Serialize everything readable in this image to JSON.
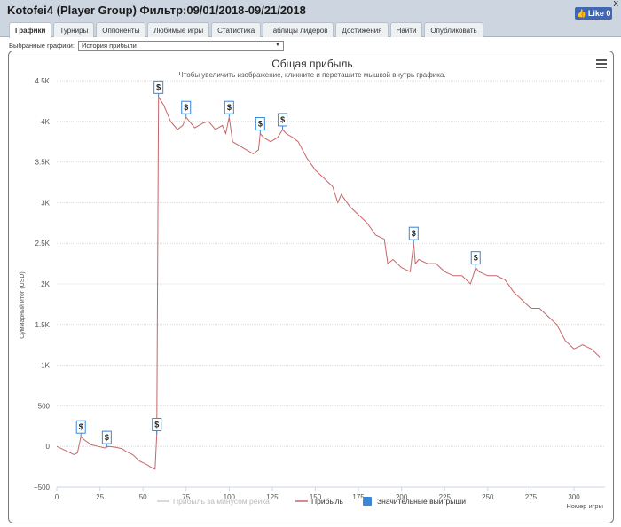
{
  "window": {
    "title": "Kotofei4 (Player Group) Фильтр:09/01/2018-09/21/2018",
    "close_label": "x",
    "like_label": "Like 0"
  },
  "tabs": [
    {
      "label": "Графики",
      "active": true
    },
    {
      "label": "Турниры",
      "active": false
    },
    {
      "label": "Оппоненты",
      "active": false
    },
    {
      "label": "Любимые игры",
      "active": false
    },
    {
      "label": "Статистика",
      "active": false
    },
    {
      "label": "Таблицы лидеров",
      "active": false
    },
    {
      "label": "Достижения",
      "active": false
    },
    {
      "label": "Найти",
      "active": false
    },
    {
      "label": "Опубликовать",
      "active": false
    }
  ],
  "selector": {
    "label": "Выбранные графики:",
    "value": "История прибыли"
  },
  "colors": {
    "profit_line": "#c4676a",
    "rake_line": "#cccccc",
    "big_win": "#3a86d8",
    "grid": "#dddddd"
  },
  "chart_data": {
    "type": "line",
    "title": "Общая прибыль",
    "subtitle": "Чтобы увеличить изображение, кликните и перетащите мышкой внутрь графика.",
    "xlabel": "Номер игры",
    "ylabel": "Суммарный итог (USD)",
    "xlim": [
      0,
      318
    ],
    "ylim": [
      -500,
      4500
    ],
    "xticks": [
      0,
      25,
      50,
      75,
      100,
      125,
      150,
      175,
      200,
      225,
      250,
      275,
      300
    ],
    "yticks": [
      -500,
      0,
      500,
      1000,
      1500,
      2000,
      2500,
      3000,
      3500,
      4000,
      4500
    ],
    "ytick_labels": [
      "−500",
      "0",
      "500",
      "1K",
      "1.5K",
      "2K",
      "2.5K",
      "3K",
      "3.5K",
      "4K",
      "4.5K"
    ],
    "series": [
      {
        "name": "Прибыль",
        "x": [
          0,
          5,
          10,
          12,
          14,
          16,
          20,
          24,
          28,
          30,
          34,
          38,
          40,
          44,
          48,
          52,
          55,
          57,
          58,
          59,
          62,
          66,
          70,
          73,
          75,
          80,
          85,
          88,
          92,
          96,
          98,
          100,
          102,
          106,
          110,
          114,
          117,
          118,
          120,
          124,
          128,
          131,
          133,
          137,
          140,
          145,
          150,
          155,
          160,
          163,
          165,
          170,
          175,
          180,
          185,
          190,
          192,
          195,
          200,
          205,
          207,
          208,
          210,
          215,
          220,
          225,
          230,
          235,
          240,
          243,
          245,
          250,
          255,
          260,
          265,
          270,
          275,
          280,
          285,
          290,
          295,
          300,
          305,
          310,
          315
        ],
        "y": [
          0,
          -50,
          -100,
          -80,
          120,
          80,
          20,
          0,
          -20,
          0,
          -10,
          -30,
          -60,
          -100,
          -180,
          -220,
          -260,
          -280,
          150,
          4300,
          4200,
          4000,
          3900,
          3950,
          4050,
          3920,
          3980,
          4000,
          3900,
          3950,
          3850,
          4050,
          3750,
          3700,
          3650,
          3600,
          3650,
          3850,
          3800,
          3750,
          3800,
          3900,
          3850,
          3800,
          3750,
          3550,
          3400,
          3300,
          3200,
          3000,
          3100,
          2950,
          2850,
          2750,
          2600,
          2550,
          2250,
          2300,
          2200,
          2150,
          2500,
          2250,
          2300,
          2250,
          2250,
          2150,
          2100,
          2100,
          2000,
          2200,
          2150,
          2100,
          2100,
          2050,
          1900,
          1800,
          1700,
          1700,
          1600,
          1500,
          1300,
          1200,
          1250,
          1200,
          1100
        ]
      },
      {
        "name": "Прибыль за минусом рейка",
        "x": [],
        "y": []
      }
    ],
    "big_wins": [
      {
        "x": 14,
        "y": 120,
        "label": "$"
      },
      {
        "x": 29,
        "y": -10,
        "label": "$"
      },
      {
        "x": 58,
        "y": 150,
        "label": "$"
      },
      {
        "x": 59,
        "y": 4300,
        "label": "$"
      },
      {
        "x": 75,
        "y": 4050,
        "label": "$"
      },
      {
        "x": 100,
        "y": 4050,
        "label": "$"
      },
      {
        "x": 118,
        "y": 3850,
        "label": "$"
      },
      {
        "x": 131,
        "y": 3900,
        "label": "$"
      },
      {
        "x": 207,
        "y": 2500,
        "label": "$"
      },
      {
        "x": 243,
        "y": 2200,
        "label": "$"
      }
    ],
    "legend": [
      {
        "name": "Прибыль за минусом рейка",
        "kind": "line",
        "color": "#cccccc",
        "text_color": "#bbbbbb"
      },
      {
        "name": "Прибыль",
        "kind": "line",
        "color": "#c4676a",
        "text_color": "#333333"
      },
      {
        "name": "Значительные выигрыши",
        "kind": "box",
        "color": "#3a86d8",
        "text_color": "#333333"
      }
    ],
    "legend_position": "bottom-center",
    "grid": true
  }
}
